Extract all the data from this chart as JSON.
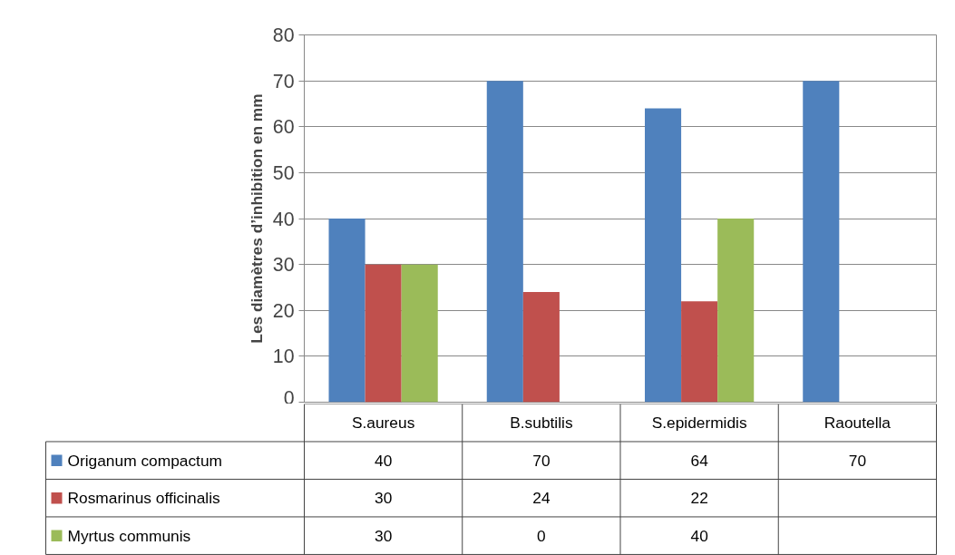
{
  "chart_data": {
    "type": "bar",
    "ylabel": "Les diamètres d’inhibition en mm",
    "categories": [
      "S.aureus",
      "B.subtilis",
      "S.epidermidis",
      "Raoutella"
    ],
    "series": [
      {
        "name": "Origanum compactum",
        "color": "#4f81bd",
        "values": [
          40,
          70,
          64,
          70
        ]
      },
      {
        "name": "Rosmarinus officinalis",
        "color": "#c0504d",
        "values": [
          30,
          24,
          22,
          null
        ]
      },
      {
        "name": "Myrtus communis",
        "color": "#9bbb59",
        "values": [
          30,
          0,
          40,
          null
        ]
      }
    ],
    "ylim": [
      0,
      80
    ],
    "yticks": [
      0,
      10,
      20,
      30,
      40,
      50,
      60,
      70,
      80
    ],
    "grid": "y",
    "legend": "bottom",
    "data_labels": true
  }
}
